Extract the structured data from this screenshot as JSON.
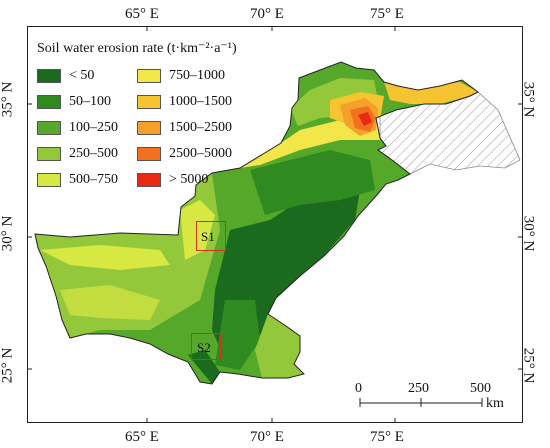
{
  "legend": {
    "title": "Soil water erosion rate (t·km⁻²·a⁻¹)",
    "classes": [
      {
        "label": "< 50",
        "color": "#1b6b1f"
      },
      {
        "label": "50–100",
        "color": "#2f8a1f"
      },
      {
        "label": "100–250",
        "color": "#56a82a"
      },
      {
        "label": "250–500",
        "color": "#93c83a"
      },
      {
        "label": "500–750",
        "color": "#d8e843"
      },
      {
        "label": "750–1000",
        "color": "#f3e64a"
      },
      {
        "label": "1000–1500",
        "color": "#f6c431"
      },
      {
        "label": "1500–2500",
        "color": "#f4a02a"
      },
      {
        "label": "2500–5000",
        "color": "#f2701e"
      },
      {
        "label": "> 5000",
        "color": "#ea2a14"
      }
    ]
  },
  "axes": {
    "top_lon": [
      "65° E",
      "70° E",
      "75° E"
    ],
    "bottom_lon": [
      "65° E",
      "70° E",
      "75° E"
    ],
    "left_lat": [
      "35° N",
      "30° N",
      "25° N"
    ],
    "right_lat": [
      "35° N",
      "30° N",
      "25° N"
    ]
  },
  "sites": [
    {
      "label": "S1"
    },
    {
      "label": "S2"
    }
  ],
  "scalebar": {
    "ticks": [
      "0",
      "250",
      "500"
    ],
    "unit": "km"
  },
  "colors": {
    "disputed_hatch": "#9a9a9a",
    "site_box": "#d83020",
    "frame": "#222222"
  }
}
